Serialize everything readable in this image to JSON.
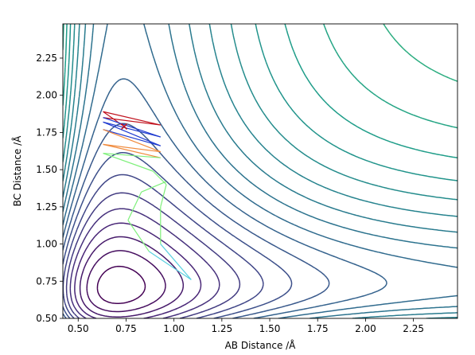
{
  "chart_data": {
    "type": "contour",
    "title": "",
    "xlabel": "AB Distance /Å",
    "ylabel": "BC Distance /Å",
    "xlim": [
      0.42,
      2.48
    ],
    "ylim": [
      0.5,
      2.48
    ],
    "xticks": [
      0.5,
      0.75,
      1.0,
      1.25,
      1.5,
      1.75,
      2.0,
      2.25
    ],
    "xtick_labels": [
      "0.50",
      "0.75",
      "1.00",
      "1.25",
      "1.50",
      "1.75",
      "2.00",
      "2.25"
    ],
    "yticks": [
      0.5,
      0.75,
      1.0,
      1.25,
      1.5,
      1.75,
      2.0,
      2.25
    ],
    "ytick_labels": [
      "0.50",
      "0.75",
      "1.00",
      "1.25",
      "1.50",
      "1.75",
      "2.00",
      "2.25"
    ],
    "grid": false,
    "colormap": "viridis",
    "colors": {
      "contour_low": "#440154",
      "contour_high": "#fde725",
      "traj_red": "#c0111d",
      "traj_blue": "#1f3bd0",
      "traj_orange": "#f08a3c",
      "traj_green": "#7ef07a"
    },
    "trajectory": {
      "start": [
        0.74,
        1.79
      ],
      "end": [
        1.09,
        0.76
      ],
      "points": [
        [
          0.74,
          1.79
        ],
        [
          0.63,
          1.89
        ],
        [
          0.93,
          1.8
        ],
        [
          0.63,
          1.85
        ],
        [
          0.93,
          1.72
        ],
        [
          0.63,
          1.82
        ],
        [
          0.93,
          1.66
        ],
        [
          0.63,
          1.77
        ],
        [
          0.93,
          1.62
        ],
        [
          0.63,
          1.67
        ],
        [
          0.93,
          1.58
        ],
        [
          0.63,
          1.61
        ],
        [
          0.89,
          1.49
        ],
        [
          0.96,
          1.4
        ],
        [
          0.93,
          1.25
        ],
        [
          0.93,
          1.0
        ],
        [
          1.09,
          0.76
        ],
        [
          0.87,
          0.95
        ],
        [
          0.76,
          1.16
        ],
        [
          0.83,
          1.35
        ],
        [
          0.96,
          1.42
        ]
      ]
    }
  }
}
